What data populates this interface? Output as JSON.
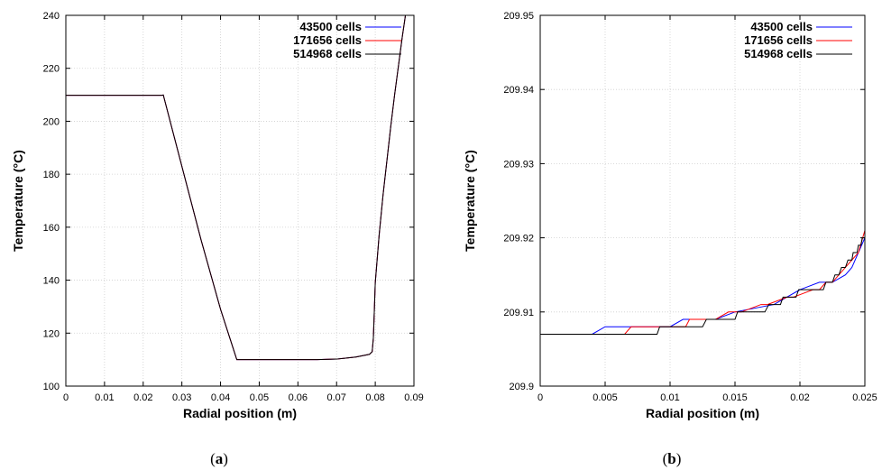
{
  "chart_data": [
    {
      "type": "line",
      "caption_letter": "a",
      "xlabel": "Radial position (m)",
      "ylabel": "Temperature (°C)",
      "xlim": [
        0,
        0.09
      ],
      "ylim": [
        100,
        240
      ],
      "xticks": [
        "0",
        "0.01",
        "0.02",
        "0.03",
        "0.04",
        "0.05",
        "0.06",
        "0.07",
        "0.08",
        "0.09"
      ],
      "yticks": [
        "100",
        "120",
        "140",
        "160",
        "180",
        "200",
        "220",
        "240"
      ],
      "grid": true,
      "legend_position": "top-right",
      "series": [
        {
          "name": "43500 cells",
          "color": "#0000ff",
          "x": [
            0,
            0.0248,
            0.0252,
            0.03,
            0.035,
            0.04,
            0.0442,
            0.05,
            0.06,
            0.065,
            0.07,
            0.075,
            0.0785,
            0.0792,
            0.0795,
            0.0797,
            0.08,
            0.081,
            0.082,
            0.083,
            0.084,
            0.085,
            0.086,
            0.087,
            0.0875,
            0.0878
          ],
          "y": [
            209.8,
            209.8,
            209.9,
            183,
            155,
            129,
            110,
            110,
            110,
            110,
            110.2,
            111,
            112,
            113,
            118,
            126,
            139,
            157,
            172,
            185,
            198,
            210,
            221,
            232,
            237,
            240
          ]
        },
        {
          "name": "171656 cells",
          "color": "#ff0000",
          "x": [
            0,
            0.0248,
            0.0252,
            0.03,
            0.035,
            0.04,
            0.0442,
            0.05,
            0.06,
            0.065,
            0.07,
            0.075,
            0.0785,
            0.0792,
            0.0795,
            0.0797,
            0.08,
            0.081,
            0.082,
            0.083,
            0.084,
            0.085,
            0.086,
            0.087,
            0.0875,
            0.0878
          ],
          "y": [
            209.8,
            209.8,
            209.9,
            183,
            155,
            129,
            110,
            110,
            110,
            110,
            110.2,
            111,
            112,
            113,
            118,
            126,
            139,
            157,
            172,
            185,
            198,
            210,
            221,
            232,
            237,
            240
          ]
        },
        {
          "name": "514968 cells",
          "color": "#000000",
          "x": [
            0,
            0.0248,
            0.0252,
            0.03,
            0.035,
            0.04,
            0.0442,
            0.05,
            0.06,
            0.065,
            0.07,
            0.075,
            0.0785,
            0.0792,
            0.0795,
            0.0797,
            0.08,
            0.081,
            0.082,
            0.083,
            0.084,
            0.085,
            0.086,
            0.087,
            0.0875,
            0.0878
          ],
          "y": [
            209.8,
            209.8,
            209.9,
            183,
            155,
            129,
            110,
            110,
            110,
            110,
            110.2,
            111,
            112,
            113,
            118,
            126,
            139,
            157,
            172,
            185,
            198,
            210,
            221,
            232,
            237,
            240
          ]
        }
      ]
    },
    {
      "type": "line",
      "caption_letter": "b",
      "xlabel": "Radial position (m)",
      "ylabel": "Temperature (°C)",
      "xlim": [
        0,
        0.025
      ],
      "ylim": [
        209.9,
        209.95
      ],
      "xticks": [
        "0",
        "0.005",
        "0.01",
        "0.015",
        "0.02",
        "0.025"
      ],
      "yticks": [
        "209.9",
        "209.91",
        "209.92",
        "209.93",
        "209.94",
        "209.95"
      ],
      "grid": true,
      "legend_position": "top-right",
      "series": [
        {
          "name": "43500 cells",
          "color": "#0000ff",
          "x": [
            0,
            0.004,
            0.005,
            0.0075,
            0.0095,
            0.01,
            0.011,
            0.0135,
            0.015,
            0.018,
            0.02,
            0.0215,
            0.0225,
            0.0235,
            0.024,
            0.0245,
            0.025
          ],
          "y": [
            209.907,
            209.907,
            209.908,
            209.908,
            209.908,
            209.908,
            209.909,
            209.909,
            209.91,
            209.911,
            209.913,
            209.914,
            209.914,
            209.915,
            209.916,
            209.918,
            209.92
          ]
        },
        {
          "name": "171656 cells",
          "color": "#ff0000",
          "x": [
            0,
            0.0065,
            0.007,
            0.0098,
            0.0112,
            0.0115,
            0.0135,
            0.0145,
            0.0155,
            0.017,
            0.0175,
            0.019,
            0.0195,
            0.021,
            0.0215,
            0.022,
            0.0225,
            0.023,
            0.0235,
            0.024,
            0.0245,
            0.025
          ],
          "y": [
            209.907,
            209.907,
            209.908,
            209.908,
            209.908,
            209.909,
            209.909,
            209.91,
            209.91,
            209.911,
            209.911,
            209.912,
            209.912,
            209.913,
            209.913,
            209.914,
            209.914,
            209.915,
            209.916,
            209.917,
            209.918,
            209.921
          ]
        },
        {
          "name": "514968 cells",
          "color": "#000000",
          "x": [
            0,
            0.009,
            0.0092,
            0.0095,
            0.0105,
            0.0125,
            0.0128,
            0.0135,
            0.015,
            0.0152,
            0.0162,
            0.0173,
            0.0176,
            0.0185,
            0.0187,
            0.0197,
            0.0199,
            0.021,
            0.0212,
            0.0218,
            0.022,
            0.0225,
            0.0227,
            0.023,
            0.0232,
            0.0235,
            0.0237,
            0.024,
            0.0241,
            0.0244,
            0.0245,
            0.0247,
            0.0248,
            0.025
          ],
          "y": [
            209.907,
            209.907,
            209.908,
            209.908,
            209.908,
            209.908,
            209.909,
            209.909,
            209.909,
            209.91,
            209.91,
            209.91,
            209.911,
            209.911,
            209.912,
            209.912,
            209.913,
            209.913,
            209.913,
            209.913,
            209.914,
            209.914,
            209.915,
            209.915,
            209.916,
            209.916,
            209.917,
            209.917,
            209.918,
            209.918,
            209.919,
            209.919,
            209.92,
            209.92
          ]
        }
      ]
    }
  ]
}
